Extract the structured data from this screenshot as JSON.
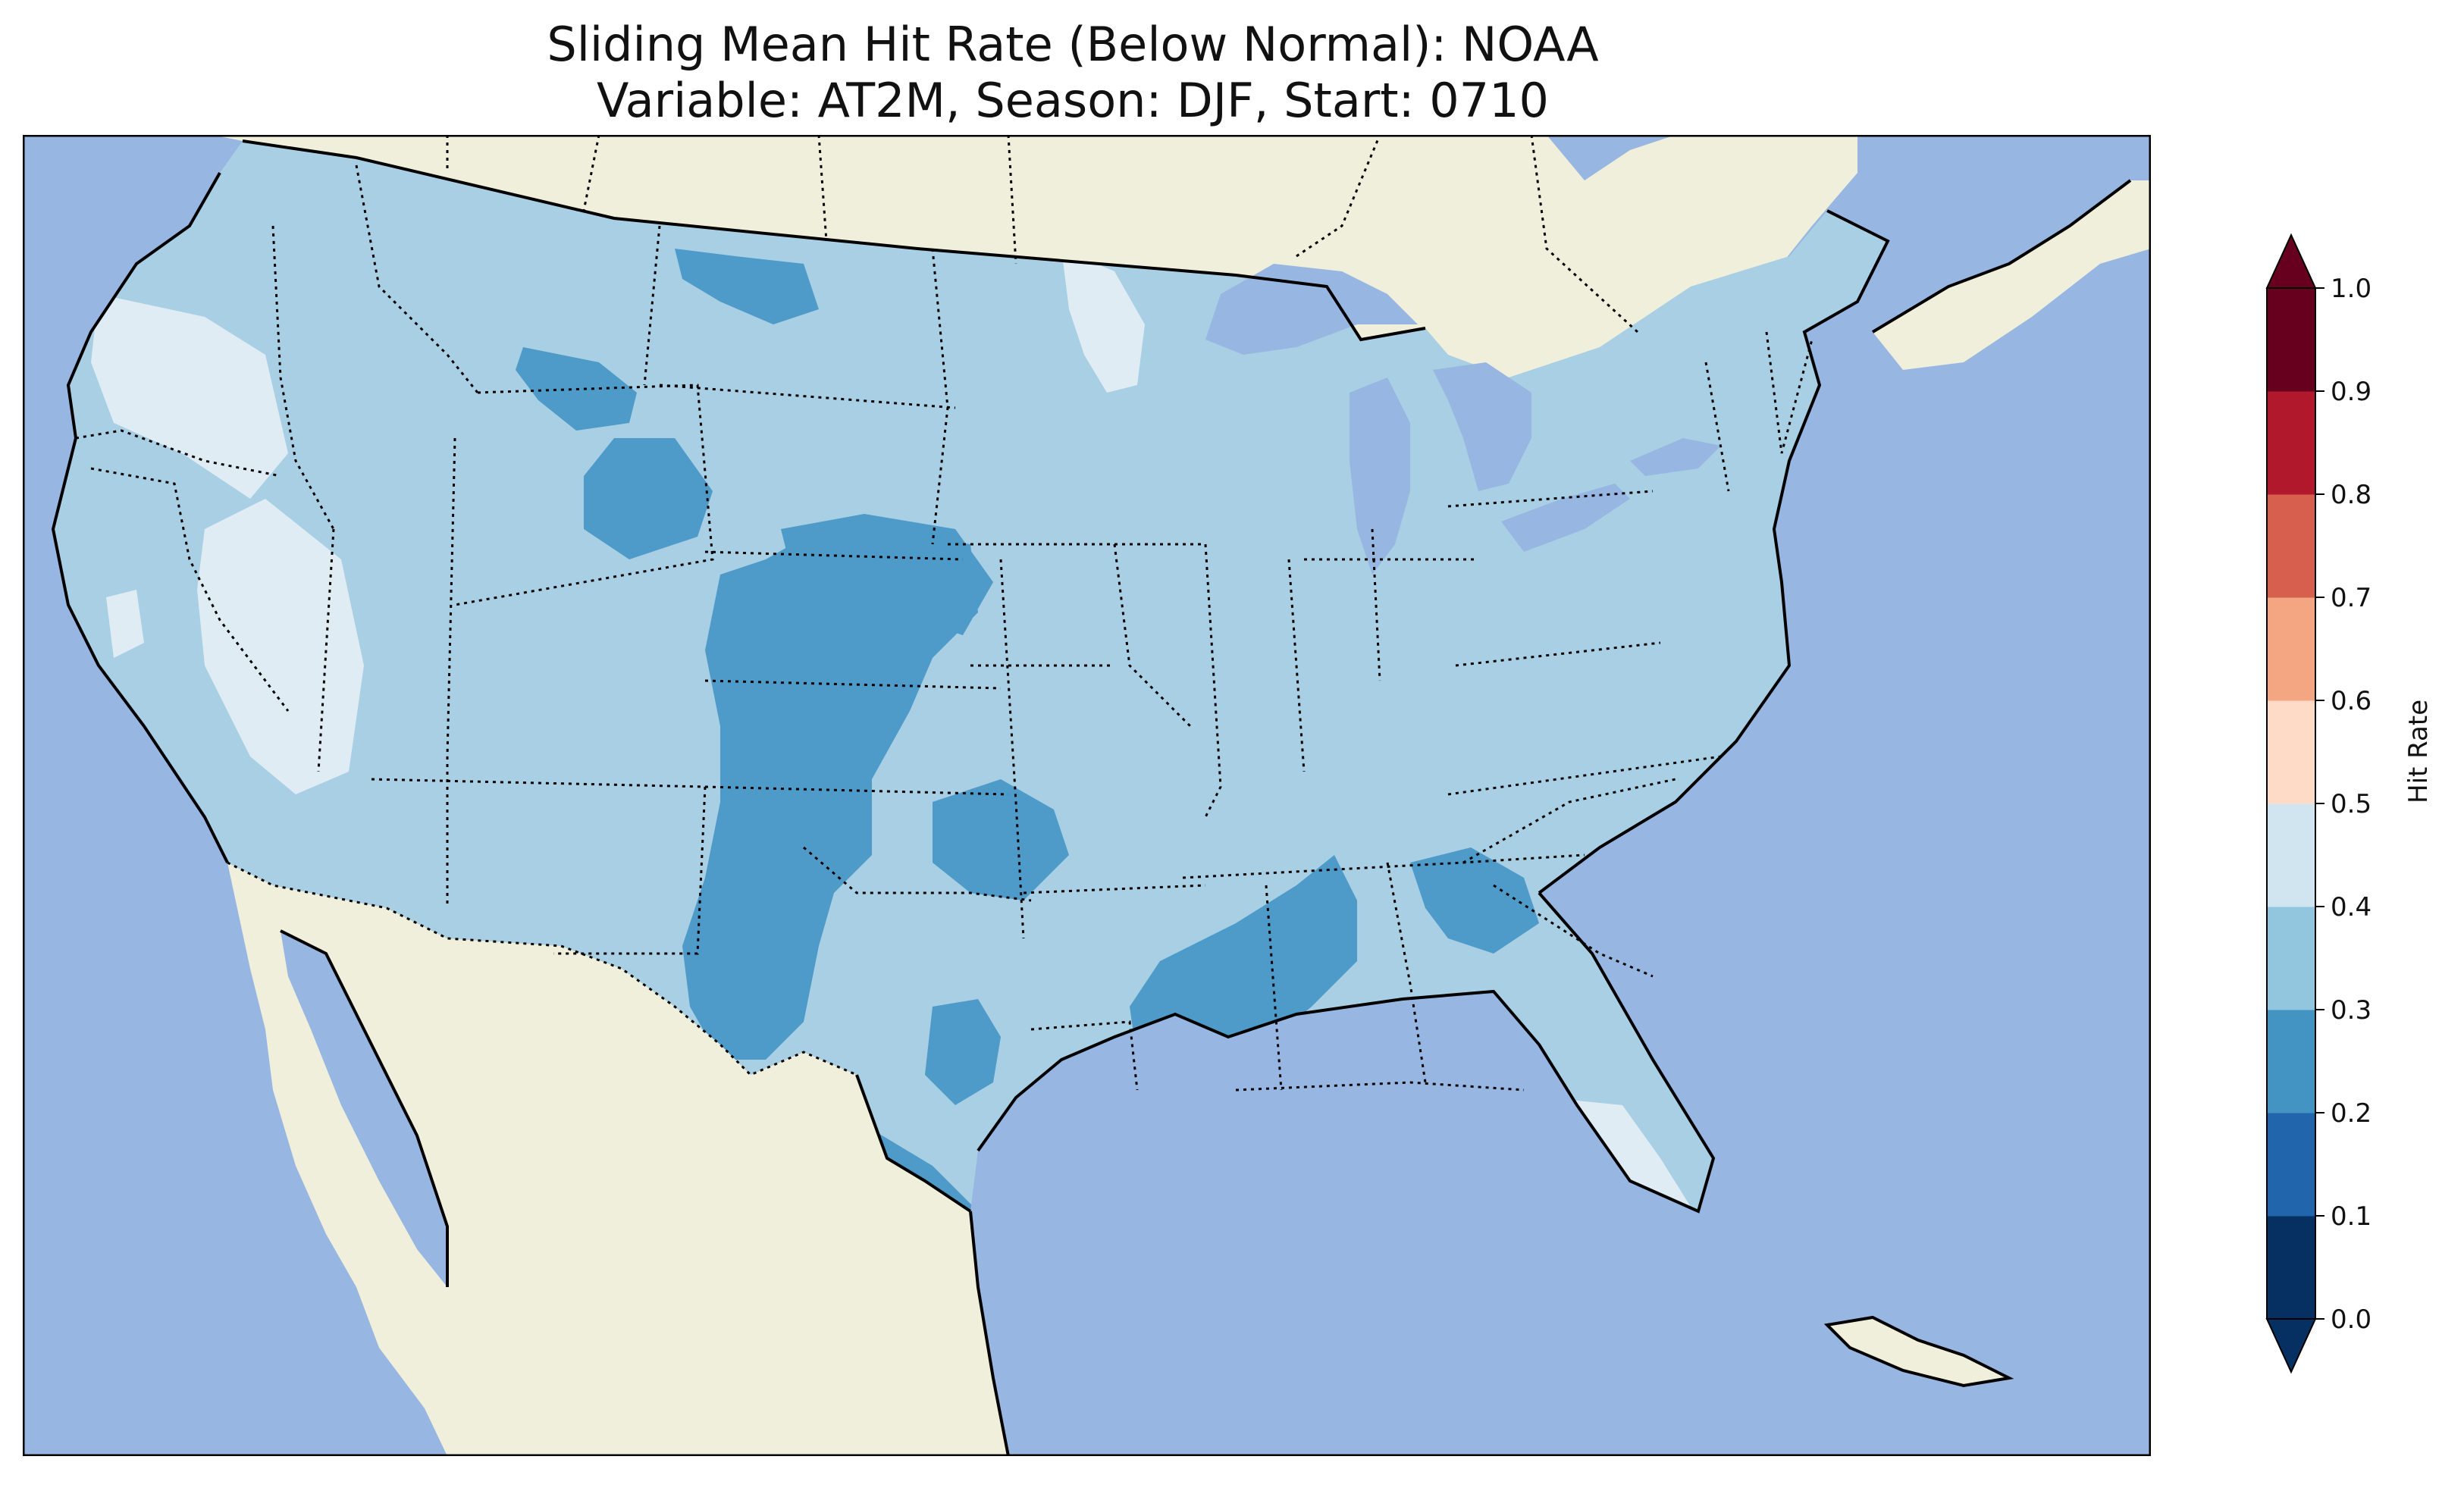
{
  "title_line1": "Sliding Mean Hit Rate (Below Normal): NOAA",
  "title_line2": "Variable: AT2M, Season: DJF, Start: 0710",
  "colorbar": {
    "label": "Hit Rate",
    "ticks": [
      "0.0",
      "0.1",
      "0.2",
      "0.3",
      "0.4",
      "0.5",
      "0.6",
      "0.7",
      "0.8",
      "0.9",
      "1.0"
    ],
    "colors": [
      "#053061",
      "#2166ac",
      "#4393c3",
      "#92c5de",
      "#d1e5f0",
      "#fddbc7",
      "#f4a582",
      "#d6604d",
      "#b2182b",
      "#67001f"
    ],
    "extend": "both"
  },
  "map_colors": {
    "ocean": "#97b6e1",
    "land": "#efefdb",
    "bin_0_2_0_3": "#4e9ac8",
    "bin_0_3_0_4": "#a8cfe4",
    "bin_0_4_0_5": "#e0ecf4",
    "borders": "#000000"
  },
  "chart_data": {
    "type": "heatmap",
    "title": "Sliding Mean Hit Rate (Below Normal): NOAA\nVariable: AT2M, Season: DJF, Start: 0710",
    "colorbar_label": "Hit Rate",
    "colorbar_range": [
      0.0,
      1.0
    ],
    "colorbar_levels": [
      0.0,
      0.1,
      0.2,
      0.3,
      0.4,
      0.5,
      0.6,
      0.7,
      0.8,
      0.9,
      1.0
    ],
    "dominant_value_range": [
      0.3,
      0.4
    ],
    "region": "Contiguous United States",
    "regions": [
      {
        "name": "Most of CONUS",
        "hit_rate_bin": [
          0.3,
          0.4
        ]
      },
      {
        "name": "Pacific Northwest interior (OR/WA)",
        "hit_rate_bin": [
          0.4,
          0.5
        ]
      },
      {
        "name": "Nevada / NE California",
        "hit_rate_bin": [
          0.4,
          0.5
        ]
      },
      {
        "name": "NW Minnesota",
        "hit_rate_bin": [
          0.4,
          0.5
        ]
      },
      {
        "name": "Florida peninsula",
        "hit_rate_bin": [
          0.4,
          0.5
        ]
      },
      {
        "name": "Central Idaho",
        "hit_rate_bin": [
          0.2,
          0.3
        ]
      },
      {
        "name": "Western Wyoming",
        "hit_rate_bin": [
          0.2,
          0.3
        ]
      },
      {
        "name": "Northern Montana border",
        "hit_rate_bin": [
          0.2,
          0.3
        ]
      },
      {
        "name": "Colorado Front Range to New Mexico and West Texas",
        "hit_rate_bin": [
          0.2,
          0.3
        ]
      },
      {
        "name": "Western Nebraska",
        "hit_rate_bin": [
          0.2,
          0.3
        ]
      },
      {
        "name": "Central Oklahoma",
        "hit_rate_bin": [
          0.2,
          0.3
        ]
      },
      {
        "name": "Central Texas",
        "hit_rate_bin": [
          0.2,
          0.3
        ]
      },
      {
        "name": "South Texas",
        "hit_rate_bin": [
          0.2,
          0.3
        ]
      },
      {
        "name": "Louisiana / Mississippi",
        "hit_rate_bin": [
          0.2,
          0.3
        ]
      },
      {
        "name": "Northern Alabama",
        "hit_rate_bin": [
          0.2,
          0.3
        ]
      }
    ]
  }
}
